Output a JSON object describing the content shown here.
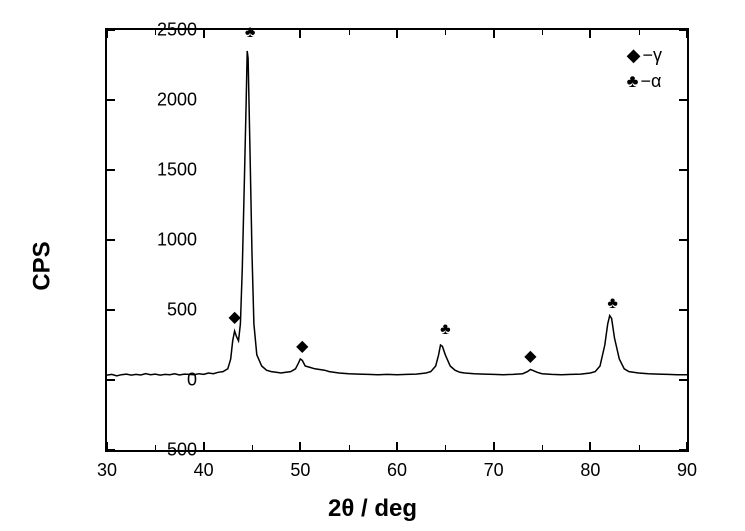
{
  "chart": {
    "type": "line",
    "xlabel": "2θ / deg",
    "ylabel": "CPS",
    "xlim": [
      30,
      90
    ],
    "ylim": [
      -500,
      2500
    ],
    "xtick_step": 10,
    "ytick_step": 500,
    "xticks": [
      30,
      40,
      50,
      60,
      70,
      80,
      90
    ],
    "yticks": [
      -500,
      0,
      500,
      1000,
      1500,
      2000,
      2500
    ],
    "xminor_step": 5,
    "background_color": "#ffffff",
    "border_color": "#000000",
    "line_color": "#000000",
    "line_width": 1.5,
    "label_fontsize": 24,
    "tick_fontsize": 18,
    "legend": {
      "items": [
        {
          "symbol": "◆",
          "text": "−γ"
        },
        {
          "symbol": "♣",
          "text": "−α"
        }
      ]
    },
    "markers": [
      {
        "x": 43.2,
        "y": 450,
        "symbol": "◆"
      },
      {
        "x": 44.8,
        "y": 2480,
        "symbol": "♣"
      },
      {
        "x": 50.2,
        "y": 245,
        "symbol": "◆"
      },
      {
        "x": 65.0,
        "y": 360,
        "symbol": "♣"
      },
      {
        "x": 73.8,
        "y": 170,
        "symbol": "◆"
      },
      {
        "x": 82.3,
        "y": 540,
        "symbol": "♣"
      }
    ],
    "data": [
      {
        "x": 30.0,
        "y": 35
      },
      {
        "x": 30.5,
        "y": 40
      },
      {
        "x": 31.0,
        "y": 30
      },
      {
        "x": 31.5,
        "y": 38
      },
      {
        "x": 32.0,
        "y": 42
      },
      {
        "x": 32.5,
        "y": 35
      },
      {
        "x": 33.0,
        "y": 40
      },
      {
        "x": 33.5,
        "y": 36
      },
      {
        "x": 34.0,
        "y": 45
      },
      {
        "x": 34.5,
        "y": 38
      },
      {
        "x": 35.0,
        "y": 42
      },
      {
        "x": 35.5,
        "y": 35
      },
      {
        "x": 36.0,
        "y": 40
      },
      {
        "x": 36.5,
        "y": 38
      },
      {
        "x": 37.0,
        "y": 44
      },
      {
        "x": 37.5,
        "y": 36
      },
      {
        "x": 38.0,
        "y": 42
      },
      {
        "x": 38.5,
        "y": 40
      },
      {
        "x": 39.0,
        "y": 38
      },
      {
        "x": 39.5,
        "y": 45
      },
      {
        "x": 40.0,
        "y": 40
      },
      {
        "x": 40.5,
        "y": 50
      },
      {
        "x": 41.0,
        "y": 45
      },
      {
        "x": 41.5,
        "y": 55
      },
      {
        "x": 42.0,
        "y": 60
      },
      {
        "x": 42.5,
        "y": 80
      },
      {
        "x": 42.8,
        "y": 150
      },
      {
        "x": 43.0,
        "y": 280
      },
      {
        "x": 43.2,
        "y": 350
      },
      {
        "x": 43.4,
        "y": 310
      },
      {
        "x": 43.6,
        "y": 280
      },
      {
        "x": 43.8,
        "y": 400
      },
      {
        "x": 44.0,
        "y": 800
      },
      {
        "x": 44.2,
        "y": 1400
      },
      {
        "x": 44.4,
        "y": 2000
      },
      {
        "x": 44.5,
        "y": 2350
      },
      {
        "x": 44.6,
        "y": 2300
      },
      {
        "x": 44.8,
        "y": 1600
      },
      {
        "x": 45.0,
        "y": 900
      },
      {
        "x": 45.2,
        "y": 400
      },
      {
        "x": 45.5,
        "y": 180
      },
      {
        "x": 46.0,
        "y": 100
      },
      {
        "x": 46.5,
        "y": 70
      },
      {
        "x": 47.0,
        "y": 60
      },
      {
        "x": 47.5,
        "y": 55
      },
      {
        "x": 48.0,
        "y": 50
      },
      {
        "x": 48.5,
        "y": 55
      },
      {
        "x": 49.0,
        "y": 60
      },
      {
        "x": 49.5,
        "y": 80
      },
      {
        "x": 49.8,
        "y": 120
      },
      {
        "x": 50.0,
        "y": 150
      },
      {
        "x": 50.2,
        "y": 140
      },
      {
        "x": 50.5,
        "y": 100
      },
      {
        "x": 51.0,
        "y": 90
      },
      {
        "x": 51.5,
        "y": 80
      },
      {
        "x": 52.0,
        "y": 75
      },
      {
        "x": 52.5,
        "y": 70
      },
      {
        "x": 53.0,
        "y": 60
      },
      {
        "x": 54.0,
        "y": 50
      },
      {
        "x": 55.0,
        "y": 45
      },
      {
        "x": 56.0,
        "y": 42
      },
      {
        "x": 57.0,
        "y": 40
      },
      {
        "x": 58.0,
        "y": 38
      },
      {
        "x": 59.0,
        "y": 40
      },
      {
        "x": 60.0,
        "y": 38
      },
      {
        "x": 61.0,
        "y": 40
      },
      {
        "x": 62.0,
        "y": 42
      },
      {
        "x": 63.0,
        "y": 50
      },
      {
        "x": 63.5,
        "y": 60
      },
      {
        "x": 64.0,
        "y": 100
      },
      {
        "x": 64.3,
        "y": 180
      },
      {
        "x": 64.5,
        "y": 250
      },
      {
        "x": 64.7,
        "y": 240
      },
      {
        "x": 65.0,
        "y": 180
      },
      {
        "x": 65.5,
        "y": 100
      },
      {
        "x": 66.0,
        "y": 70
      },
      {
        "x": 66.5,
        "y": 55
      },
      {
        "x": 67.0,
        "y": 50
      },
      {
        "x": 68.0,
        "y": 45
      },
      {
        "x": 69.0,
        "y": 42
      },
      {
        "x": 70.0,
        "y": 40
      },
      {
        "x": 71.0,
        "y": 38
      },
      {
        "x": 72.0,
        "y": 40
      },
      {
        "x": 73.0,
        "y": 45
      },
      {
        "x": 73.5,
        "y": 60
      },
      {
        "x": 73.8,
        "y": 75
      },
      {
        "x": 74.0,
        "y": 70
      },
      {
        "x": 74.5,
        "y": 55
      },
      {
        "x": 75.0,
        "y": 45
      },
      {
        "x": 76.0,
        "y": 40
      },
      {
        "x": 77.0,
        "y": 38
      },
      {
        "x": 78.0,
        "y": 40
      },
      {
        "x": 79.0,
        "y": 42
      },
      {
        "x": 80.0,
        "y": 50
      },
      {
        "x": 80.5,
        "y": 60
      },
      {
        "x": 81.0,
        "y": 100
      },
      {
        "x": 81.5,
        "y": 250
      },
      {
        "x": 81.8,
        "y": 400
      },
      {
        "x": 82.0,
        "y": 460
      },
      {
        "x": 82.2,
        "y": 440
      },
      {
        "x": 82.5,
        "y": 300
      },
      {
        "x": 83.0,
        "y": 150
      },
      {
        "x": 83.5,
        "y": 80
      },
      {
        "x": 84.0,
        "y": 60
      },
      {
        "x": 85.0,
        "y": 50
      },
      {
        "x": 86.0,
        "y": 45
      },
      {
        "x": 87.0,
        "y": 42
      },
      {
        "x": 88.0,
        "y": 40
      },
      {
        "x": 89.0,
        "y": 38
      },
      {
        "x": 90.0,
        "y": 38
      }
    ]
  }
}
